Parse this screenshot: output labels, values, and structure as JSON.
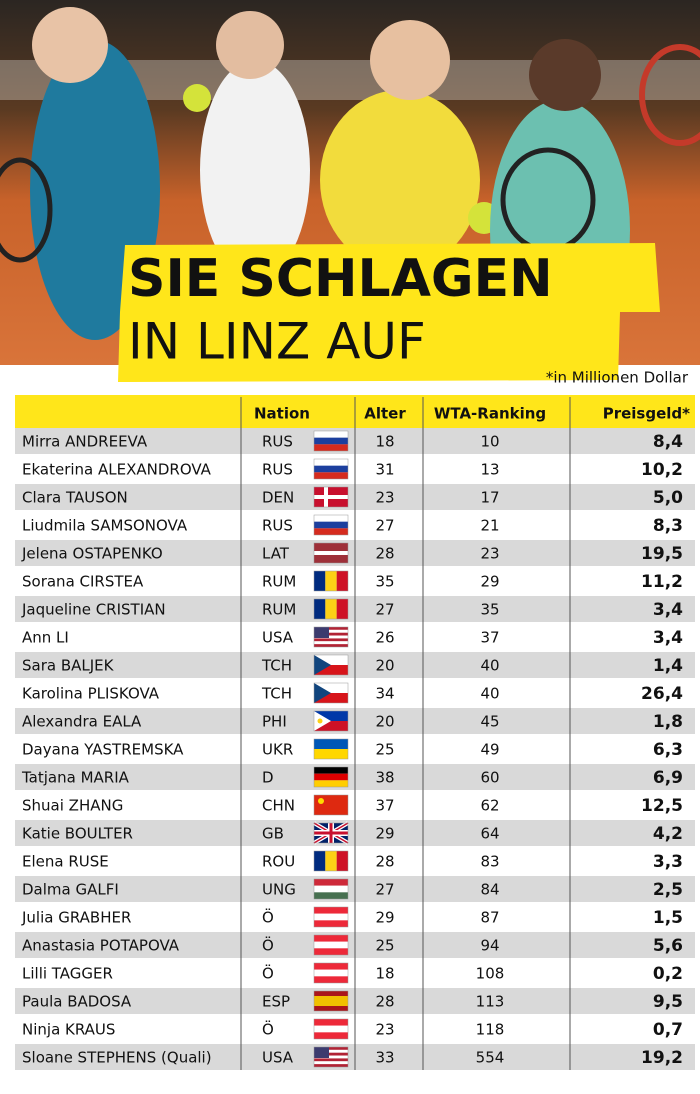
{
  "header": {
    "title_line1": "SIE SCHLAGEN",
    "title_line2": "IN LINZ AUF",
    "note": "*in Millionen Dollar"
  },
  "table": {
    "columns": [
      "Nation",
      "Alter",
      "WTA-Ranking",
      "Preisgeld*"
    ],
    "rows": [
      [
        "Mirra ANDREEVA",
        "RUS",
        "18",
        "10",
        "8,4"
      ],
      [
        "Ekaterina ALEXANDROVA",
        "RUS",
        "31",
        "13",
        "10,2"
      ],
      [
        "Clara TAUSON",
        "DEN",
        "23",
        "17",
        "5,0"
      ],
      [
        "Liudmila SAMSONOVA",
        "RUS",
        "27",
        "21",
        "8,3"
      ],
      [
        "Jelena OSTAPENKO",
        "LAT",
        "28",
        "23",
        "19,5"
      ],
      [
        "Sorana CIRSTEA",
        "RUM",
        "35",
        "29",
        "11,2"
      ],
      [
        "Jaqueline CRISTIAN",
        "RUM",
        "27",
        "35",
        "3,4"
      ],
      [
        "Ann LI",
        "USA",
        "26",
        "37",
        "3,4"
      ],
      [
        "Sara BALJEK",
        "TCH",
        "20",
        "40",
        "1,4"
      ],
      [
        "Karolina PLISKOVA",
        "TCH",
        "34",
        "40",
        "26,4"
      ],
      [
        "Alexandra EALA",
        "PHI",
        "20",
        "45",
        "1,8"
      ],
      [
        "Dayana YASTREMSKA",
        "UKR",
        "25",
        "49",
        "6,3"
      ],
      [
        "Tatjana MARIA",
        "D",
        "38",
        "60",
        "6,9"
      ],
      [
        "Shuai ZHANG",
        "CHN",
        "37",
        "62",
        "12,5"
      ],
      [
        "Katie BOULTER",
        "GB",
        "29",
        "64",
        "4,2"
      ],
      [
        "Elena RUSE",
        "ROU",
        "28",
        "83",
        "3,3"
      ],
      [
        "Dalma GALFI",
        "UNG",
        "27",
        "84",
        "2,5"
      ],
      [
        "Julia GRABHER",
        "Ö",
        "29",
        "87",
        "1,5"
      ],
      [
        "Anastasia POTAPOVA",
        "Ö",
        "25",
        "94",
        "5,6"
      ],
      [
        "Lilli TAGGER",
        "Ö",
        "18",
        "108",
        "0,2"
      ],
      [
        "Paula BADOSA",
        "ESP",
        "28",
        "113",
        "9,5"
      ],
      [
        "Ninja KRAUS",
        "Ö",
        "23",
        "118",
        "0,7"
      ],
      [
        "Sloane STEPHENS (Quali)",
        "USA",
        "33",
        "554",
        "19,2"
      ]
    ]
  }
}
